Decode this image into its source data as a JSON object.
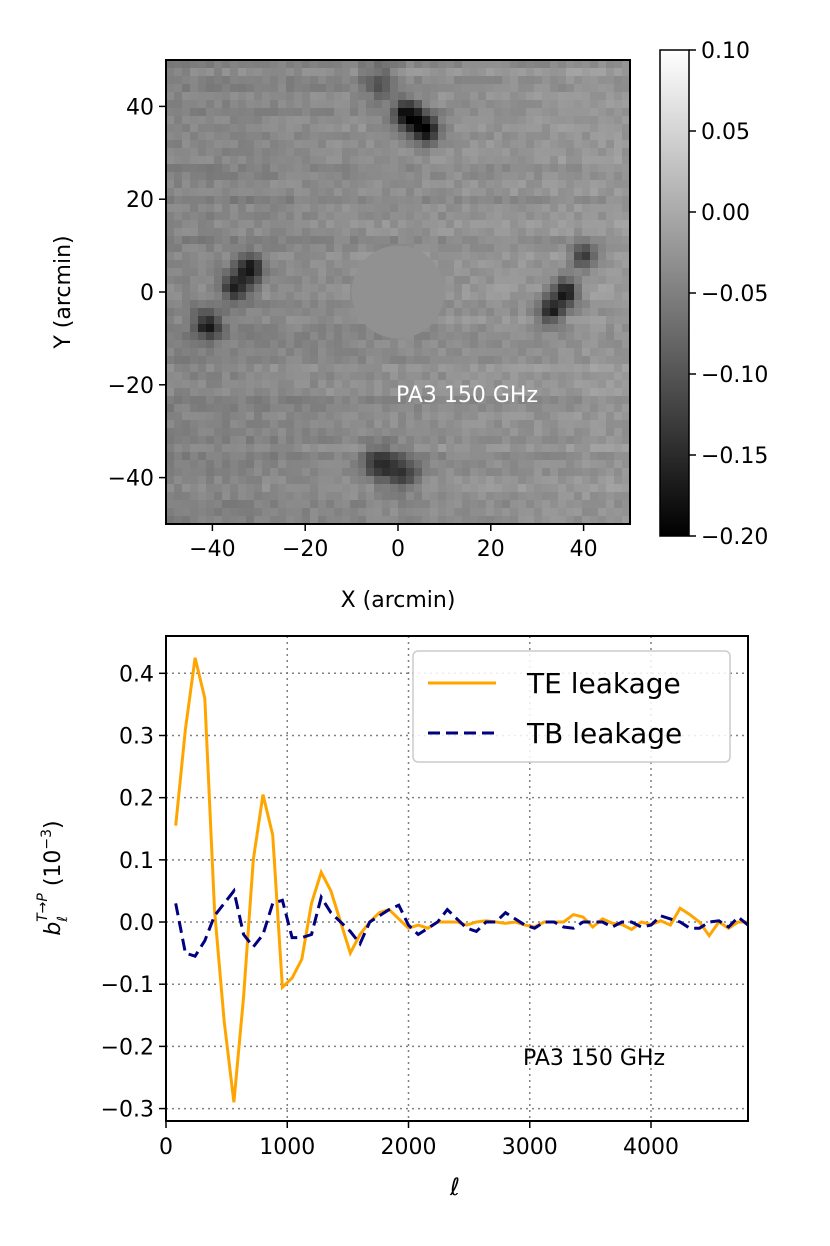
{
  "chart_data": [
    {
      "type": "heatmap",
      "title": "",
      "annotation": "PA3 150 GHz",
      "xlabel": "X (arcmin)",
      "ylabel": "Y (arcmin)",
      "xlim": [
        -50,
        50
      ],
      "ylim": [
        -50,
        50
      ],
      "xticks": [
        -40,
        -20,
        0,
        20,
        40
      ],
      "yticks": [
        -40,
        -20,
        0,
        20,
        40
      ],
      "xtick_labels": [
        "−40",
        "−20",
        "0",
        "20",
        "40"
      ],
      "ytick_labels": [
        "−40",
        "−20",
        "0",
        "20",
        "40"
      ],
      "colormap": "gray",
      "mask_value": -0.03,
      "mask_radius": 10,
      "colorbar": {
        "min": -0.2,
        "max": 0.1,
        "ticks": [
          0.1,
          0.05,
          0.0,
          -0.05,
          -0.1,
          -0.15,
          -0.2
        ],
        "tick_labels": [
          "0.10",
          "0.05",
          "0.00",
          "−0.05",
          "−0.10",
          "−0.15",
          "−0.20"
        ]
      },
      "features": [
        {
          "x": 2,
          "y": 38,
          "sigma": 2.2,
          "amp": -0.16
        },
        {
          "x": 6,
          "y": 35,
          "sigma": 2.2,
          "amp": -0.16
        },
        {
          "x": -4,
          "y": 45,
          "sigma": 2.5,
          "amp": -0.07
        },
        {
          "x": -32,
          "y": 5,
          "sigma": 2.0,
          "amp": -0.14
        },
        {
          "x": -35,
          "y": 1,
          "sigma": 2.0,
          "amp": -0.13
        },
        {
          "x": -41,
          "y": -7,
          "sigma": 2.0,
          "amp": -0.13
        },
        {
          "x": 36,
          "y": 0,
          "sigma": 2.0,
          "amp": -0.15
        },
        {
          "x": 33,
          "y": -4,
          "sigma": 2.0,
          "amp": -0.13
        },
        {
          "x": 40,
          "y": 8,
          "sigma": 2.0,
          "amp": -0.11
        },
        {
          "x": -4,
          "y": -37,
          "sigma": 2.5,
          "amp": -0.1
        },
        {
          "x": 1,
          "y": -39,
          "sigma": 2.5,
          "amp": -0.1
        }
      ]
    },
    {
      "type": "line",
      "title": "",
      "annotation": "PA3 150 GHz",
      "xlabel": "ℓ",
      "ylabel_base": "b",
      "ylabel_sub": "ℓ",
      "ylabel_sup": "T→P",
      "ylabel_unit": " (10",
      "ylabel_unit_exp": "−3",
      "ylabel_unit_close": ")",
      "xlim": [
        0,
        4800
      ],
      "ylim": [
        -0.32,
        0.46
      ],
      "xticks": [
        0,
        1000,
        2000,
        3000,
        4000
      ],
      "xtick_labels": [
        "0",
        "1000",
        "2000",
        "3000",
        "4000"
      ],
      "yticks": [
        0.4,
        0.3,
        0.2,
        0.1,
        0.0,
        -0.1,
        -0.2,
        -0.3
      ],
      "ytick_labels": [
        "0.4",
        "0.3",
        "0.2",
        "0.1",
        "0.0",
        "−0.1",
        "−0.2",
        "−0.3"
      ],
      "grid": true,
      "legend_position": "top-right",
      "x": [
        80,
        160,
        240,
        320,
        400,
        480,
        560,
        640,
        720,
        800,
        880,
        960,
        1040,
        1120,
        1200,
        1280,
        1360,
        1440,
        1520,
        1600,
        1680,
        1760,
        1840,
        1920,
        2000,
        2080,
        2160,
        2240,
        2320,
        2400,
        2480,
        2560,
        2640,
        2720,
        2800,
        2880,
        2960,
        3040,
        3120,
        3200,
        3280,
        3360,
        3440,
        3520,
        3600,
        3680,
        3760,
        3840,
        3920,
        4000,
        4080,
        4160,
        4240,
        4320,
        4400,
        4480,
        4560,
        4640,
        4720,
        4800
      ],
      "series": [
        {
          "name": "TE leakage",
          "color": "#ffa500",
          "dash": "solid",
          "values": [
            0.155,
            0.31,
            0.425,
            0.36,
            0.02,
            -0.16,
            -0.29,
            -0.12,
            0.1,
            0.205,
            0.14,
            -0.105,
            -0.09,
            -0.06,
            0.03,
            0.08,
            0.05,
            0.0,
            -0.05,
            -0.02,
            0.0,
            0.015,
            0.02,
            0.005,
            -0.01,
            -0.005,
            -0.01,
            0.0,
            0.0,
            0.0,
            -0.005,
            0.0,
            0.002,
            0.0,
            -0.002,
            0.0,
            -0.005,
            -0.008,
            0.0,
            0.0,
            0.0,
            0.012,
            0.008,
            -0.008,
            0.005,
            -0.002,
            -0.004,
            -0.012,
            0.0,
            -0.004,
            0.002,
            -0.005,
            0.022,
            0.012,
            0.0,
            -0.022,
            0.0,
            -0.01,
            0.0,
            0.0
          ]
        },
        {
          "name": "TB leakage",
          "color": "#000080",
          "dash": "dashed",
          "values": [
            0.03,
            -0.05,
            -0.055,
            -0.03,
            0.01,
            0.03,
            0.05,
            -0.02,
            -0.04,
            -0.02,
            0.03,
            0.035,
            -0.025,
            -0.025,
            -0.02,
            0.04,
            0.015,
            0.0,
            -0.015,
            -0.035,
            0.0,
            0.01,
            0.02,
            0.027,
            -0.005,
            -0.02,
            -0.01,
            0.0,
            0.02,
            0.005,
            -0.01,
            -0.015,
            0.0,
            0.0,
            0.015,
            0.005,
            -0.005,
            -0.01,
            0.0,
            0.0,
            -0.008,
            -0.01,
            0.0,
            0.0,
            0.0,
            -0.008,
            0.0,
            0.0,
            -0.008,
            -0.005,
            0.01,
            0.005,
            0.0,
            -0.01,
            -0.01,
            0.0,
            0.002,
            -0.008,
            0.008,
            -0.005
          ]
        }
      ]
    }
  ]
}
